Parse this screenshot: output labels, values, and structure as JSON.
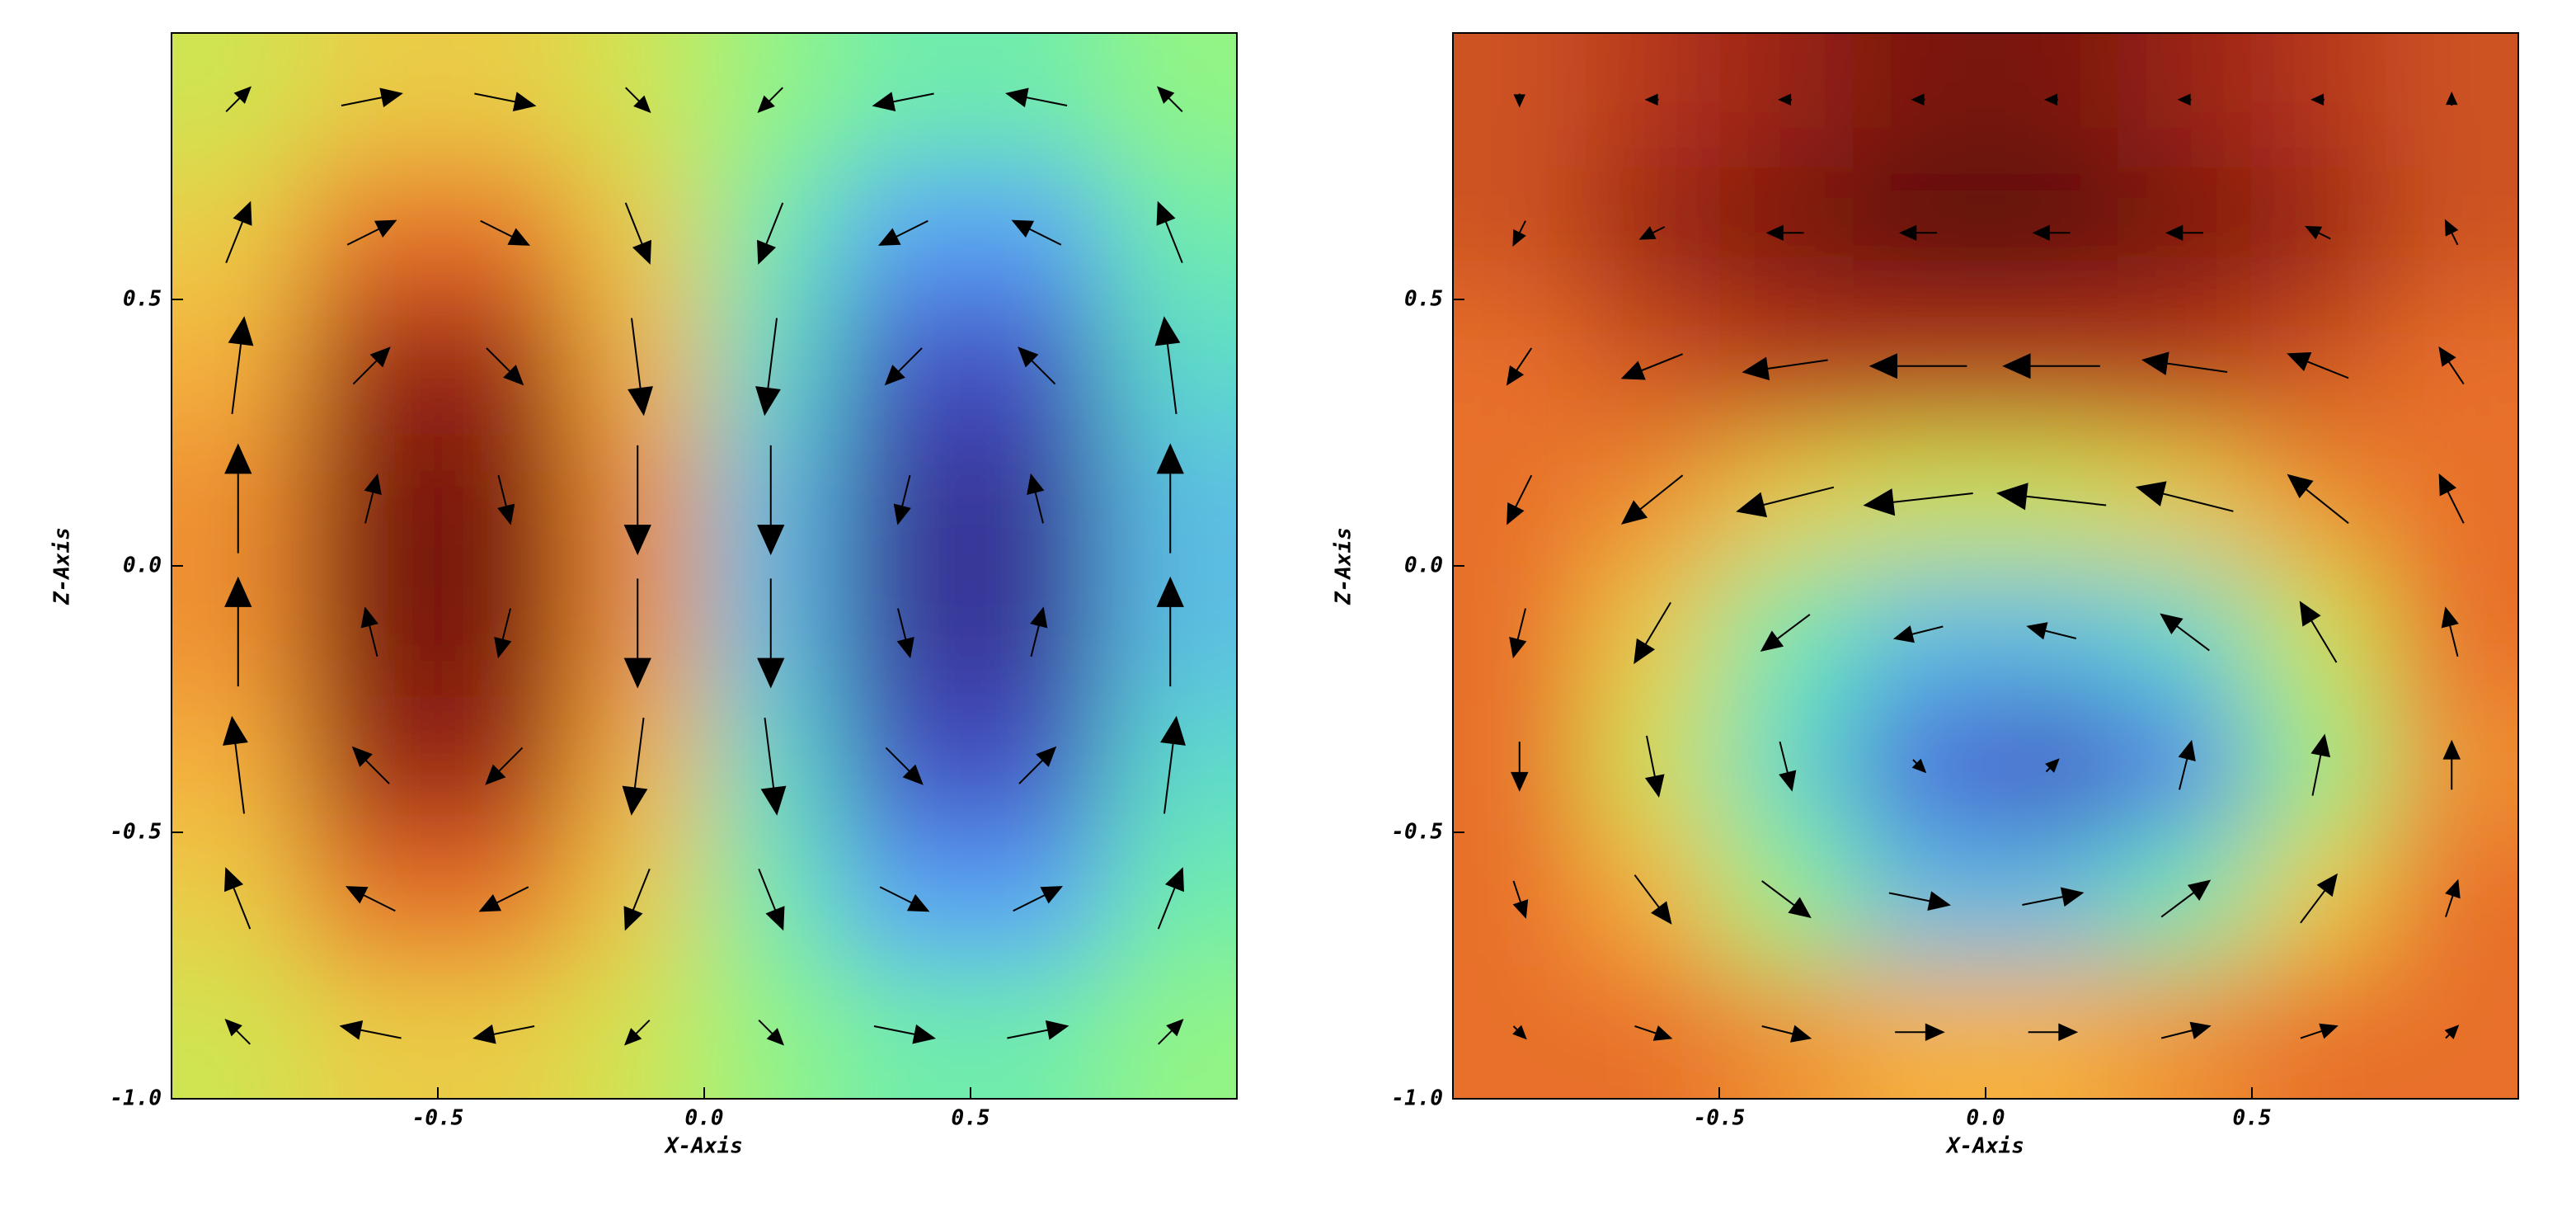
{
  "chart_data": [
    {
      "type": "quiver",
      "x_label": "X-Axis",
      "y_label": "Z-Axis",
      "xlim": [
        -1,
        1
      ],
      "ylim": [
        -1,
        1
      ],
      "xticks": [
        -0.5,
        {
          "value": 0,
          "label": "0.0"
        },
        0.5
      ],
      "yticks": [
        {
          "value": -1,
          "label": "-1.0"
        },
        -0.5,
        {
          "value": 0,
          "label": "0.0"
        },
        0.5
      ],
      "x": [
        -0.875,
        -0.625,
        -0.375,
        -0.125,
        0.125,
        0.375,
        0.625,
        0.875
      ],
      "z": [
        0.875,
        0.625,
        0.375,
        0.125,
        -0.125,
        -0.375,
        -0.625,
        -0.875
      ],
      "clim": [
        -1,
        1
      ],
      "colormap": [
        "#2a1a6e",
        "#4a5ed8",
        "#5aa0f8",
        "#5ee8c0",
        "#b4fc5c",
        "#f8c040",
        "#e8702a",
        "#a82818",
        "#5a0e08"
      ],
      "field": [
        [
          0.1,
          0.2,
          0.2,
          0.1,
          -0.1,
          -0.2,
          -0.2,
          -0.1
        ],
        [
          0.2,
          0.5,
          0.5,
          0.2,
          -0.2,
          -0.5,
          -0.5,
          -0.2
        ],
        [
          0.3,
          0.8,
          0.8,
          0.3,
          -0.3,
          -0.8,
          -0.8,
          -0.3
        ],
        [
          0.4,
          0.9,
          0.9,
          0.4,
          -0.4,
          -0.9,
          -0.9,
          -0.4
        ],
        [
          0.4,
          0.9,
          0.9,
          0.4,
          -0.4,
          -0.9,
          -0.9,
          -0.4
        ],
        [
          0.3,
          0.8,
          0.8,
          0.3,
          -0.3,
          -0.8,
          -0.8,
          -0.3
        ],
        [
          0.2,
          0.5,
          0.5,
          0.2,
          -0.2,
          -0.5,
          -0.5,
          -0.2
        ],
        [
          0.1,
          0.2,
          0.2,
          0.1,
          -0.1,
          -0.2,
          -0.2,
          -0.1
        ]
      ],
      "u": [
        [
          0.2,
          0.5,
          0.5,
          0.2,
          -0.2,
          -0.5,
          -0.5,
          -0.2
        ],
        [
          0.2,
          0.4,
          0.4,
          0.2,
          -0.2,
          -0.4,
          -0.4,
          -0.2
        ],
        [
          0.1,
          0.3,
          0.3,
          0.1,
          -0.1,
          -0.3,
          -0.3,
          -0.1
        ],
        [
          0,
          0.1,
          0.1,
          0,
          0,
          -0.1,
          -0.1,
          0
        ],
        [
          0,
          -0.1,
          -0.1,
          0,
          0,
          0.1,
          0.1,
          0
        ],
        [
          -0.1,
          -0.3,
          -0.3,
          -0.1,
          0.1,
          0.3,
          0.3,
          0.1
        ],
        [
          -0.2,
          -0.4,
          -0.4,
          -0.2,
          0.2,
          0.4,
          0.4,
          0.2
        ],
        [
          -0.2,
          -0.5,
          -0.5,
          -0.2,
          0.2,
          0.5,
          0.5,
          0.2
        ]
      ],
      "w": [
        [
          0.2,
          0.1,
          -0.1,
          -0.2,
          -0.2,
          -0.1,
          0.1,
          0.2
        ],
        [
          0.5,
          0.2,
          -0.2,
          -0.5,
          -0.5,
          -0.2,
          0.2,
          0.5
        ],
        [
          0.8,
          0.3,
          -0.3,
          -0.8,
          -0.8,
          -0.3,
          0.3,
          0.8
        ],
        [
          0.9,
          0.4,
          -0.4,
          -0.9,
          -0.9,
          -0.4,
          0.4,
          0.9
        ],
        [
          0.9,
          0.4,
          -0.4,
          -0.9,
          -0.9,
          -0.4,
          0.4,
          0.9
        ],
        [
          0.8,
          0.3,
          -0.3,
          -0.8,
          -0.8,
          -0.3,
          0.3,
          0.8
        ],
        [
          0.5,
          0.2,
          -0.2,
          -0.5,
          -0.5,
          -0.2,
          0.2,
          0.5
        ],
        [
          0.2,
          0.1,
          -0.1,
          -0.2,
          -0.2,
          -0.1,
          0.1,
          0.2
        ]
      ]
    },
    {
      "type": "quiver",
      "x_label": "X-Axis",
      "y_label": "Z-Axis",
      "xlim": [
        -1,
        1
      ],
      "ylim": [
        -1,
        1
      ],
      "xticks": [
        -0.5,
        {
          "value": 0,
          "label": "0.0"
        },
        0.5
      ],
      "yticks": [
        {
          "value": -1,
          "label": "-1.0"
        },
        -0.5,
        {
          "value": 0,
          "label": "0.0"
        },
        0.5
      ],
      "x": [
        -0.875,
        -0.625,
        -0.375,
        -0.125,
        0.125,
        0.375,
        0.625,
        0.875
      ],
      "z": [
        0.875,
        0.625,
        0.375,
        0.125,
        -0.125,
        -0.375,
        -0.625,
        -0.875
      ],
      "clim": [
        0,
        1
      ],
      "colormap": [
        "#2a1a6e",
        "#4a5ed8",
        "#5aa0f8",
        "#5ee8c0",
        "#b4fc5c",
        "#f8c040",
        "#e8702a",
        "#a82818",
        "#5a0e08"
      ],
      "field": [
        [
          0.8,
          0.85,
          0.9,
          0.95,
          0.95,
          0.9,
          0.85,
          0.8
        ],
        [
          0.8,
          0.9,
          0.95,
          1.0,
          1.0,
          0.95,
          0.9,
          0.8
        ],
        [
          0.75,
          0.8,
          0.85,
          0.85,
          0.85,
          0.85,
          0.8,
          0.75
        ],
        [
          0.75,
          0.7,
          0.6,
          0.55,
          0.55,
          0.6,
          0.7,
          0.75
        ],
        [
          0.75,
          0.6,
          0.4,
          0.3,
          0.3,
          0.35,
          0.55,
          0.75
        ],
        [
          0.75,
          0.55,
          0.35,
          0.15,
          0.1,
          0.2,
          0.45,
          0.7
        ],
        [
          0.75,
          0.65,
          0.45,
          0.3,
          0.3,
          0.4,
          0.6,
          0.75
        ],
        [
          0.75,
          0.75,
          0.7,
          0.65,
          0.65,
          0.7,
          0.75,
          0.75
        ]
      ],
      "u": [
        [
          0,
          -0.1,
          -0.1,
          -0.1,
          -0.1,
          -0.1,
          -0.1,
          0
        ],
        [
          -0.1,
          -0.2,
          -0.3,
          -0.3,
          -0.3,
          -0.3,
          -0.2,
          -0.1
        ],
        [
          -0.2,
          -0.5,
          -0.7,
          -0.8,
          -0.8,
          -0.7,
          -0.5,
          -0.2
        ],
        [
          -0.2,
          -0.5,
          -0.8,
          -0.9,
          -0.9,
          -0.8,
          -0.5,
          -0.2
        ],
        [
          -0.1,
          -0.3,
          -0.4,
          -0.4,
          -0.4,
          -0.4,
          -0.3,
          -0.1
        ],
        [
          0,
          0.1,
          0.1,
          0.1,
          0.1,
          0.1,
          0.1,
          0
        ],
        [
          0.1,
          0.3,
          0.4,
          0.5,
          0.5,
          0.4,
          0.3,
          0.1
        ],
        [
          0.1,
          0.3,
          0.4,
          0.4,
          0.4,
          0.4,
          0.3,
          0.1
        ]
      ],
      "w": [
        [
          -0.1,
          0,
          0,
          0,
          0,
          0,
          0,
          0.1
        ],
        [
          -0.2,
          -0.1,
          0,
          0,
          0,
          0,
          0.1,
          0.2
        ],
        [
          -0.3,
          -0.2,
          -0.1,
          0,
          0,
          0.1,
          0.2,
          0.3
        ],
        [
          -0.4,
          -0.4,
          -0.2,
          -0.1,
          0.1,
          0.2,
          0.4,
          0.4
        ],
        [
          -0.4,
          -0.5,
          -0.3,
          -0.1,
          0.1,
          0.3,
          0.5,
          0.4
        ],
        [
          -0.4,
          -0.5,
          -0.4,
          -0.1,
          0.1,
          0.4,
          0.5,
          0.4
        ],
        [
          -0.3,
          -0.4,
          -0.3,
          -0.1,
          0.1,
          0.3,
          0.4,
          0.3
        ],
        [
          -0.1,
          -0.1,
          -0.1,
          0,
          0,
          0.1,
          0.1,
          0.1
        ]
      ]
    }
  ]
}
